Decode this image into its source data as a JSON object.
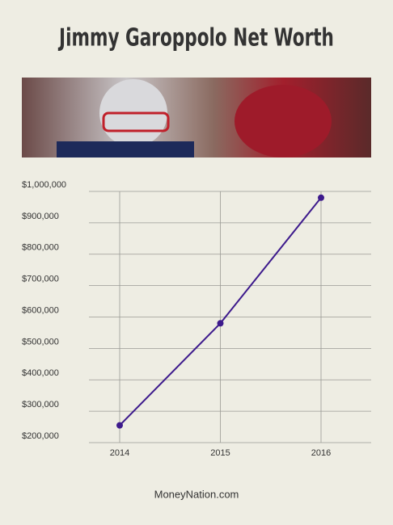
{
  "chart_data": {
    "type": "line",
    "title": "Jimmy Garoppolo Net Worth",
    "footer": "MoneyNation.com",
    "categories": [
      "2014",
      "2015",
      "2016"
    ],
    "series": [
      {
        "name": "Net Worth",
        "color": "#3d1a8c",
        "values": [
          255000,
          580000,
          980000
        ]
      }
    ],
    "ylim": [
      200000,
      1000000
    ],
    "yticks": [
      {
        "value": 200000,
        "label": "$200,000"
      },
      {
        "value": 300000,
        "label": "$300,000"
      },
      {
        "value": 400000,
        "label": "$400,000"
      },
      {
        "value": 500000,
        "label": "$500,000"
      },
      {
        "value": 600000,
        "label": "$600,000"
      },
      {
        "value": 700000,
        "label": "$700,000"
      },
      {
        "value": 800000,
        "label": "$800,000"
      },
      {
        "value": 900000,
        "label": "$900,000"
      },
      {
        "value": 1000000,
        "label": "$1,000,000"
      }
    ],
    "grid": true
  }
}
